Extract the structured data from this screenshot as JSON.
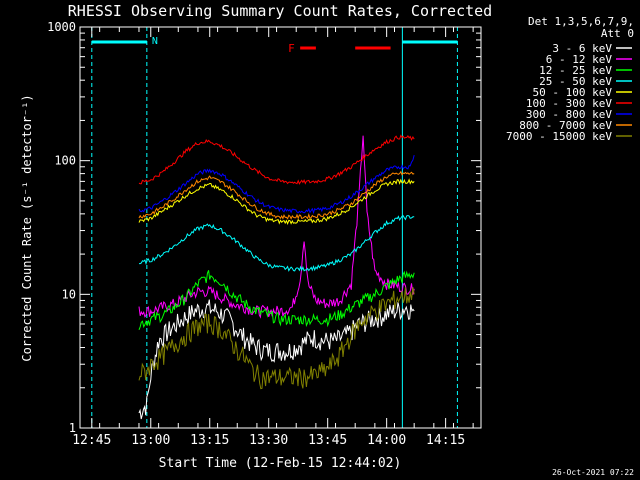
{
  "chart_data": {
    "type": "line",
    "title": "RHESSI Observing Summary Count Rates, Corrected",
    "xlabel": "Start Time (12-Feb-15 12:44:02)",
    "ylabel": "Corrected Count Rate (s⁻¹ detector⁻¹)",
    "y_scale": "log",
    "ylim": [
      1,
      1000
    ],
    "x_range_minutes": [
      "12:42",
      "14:24"
    ],
    "x_ticks": [
      "12:45",
      "13:00",
      "13:15",
      "13:30",
      "13:45",
      "14:00",
      "14:15"
    ],
    "y_ticks": [
      "1",
      "10",
      "100",
      "1000"
    ],
    "legend_header": [
      "Det 1,3,5,6,7,9,",
      "Att 0"
    ],
    "legend_position": "right",
    "timestamp": "26-Oct-2021 07:22",
    "annotations": {
      "night_marker": "N",
      "flare_marker": "F",
      "cyan_bars": [
        [
          "12:45",
          "12:59"
        ],
        [
          "14:04",
          "14:18"
        ]
      ],
      "cyan_dashed_lines": [
        "12:45",
        "12:59",
        "14:18"
      ],
      "cyan_solid_line": "14:04",
      "flare_bars": [
        [
          "13:38",
          "13:42"
        ],
        [
          "13:52",
          "14:01"
        ]
      ]
    },
    "series": [
      {
        "name": "3 - 6 keV",
        "color": "#ffffff",
        "times": [
          "12:57",
          "12:59",
          "13:00",
          "13:02",
          "13:05",
          "13:08",
          "13:11",
          "13:14",
          "13:17",
          "13:20",
          "13:23",
          "13:26",
          "13:29",
          "13:32",
          "13:35",
          "13:38",
          "13:41",
          "13:44",
          "13:47",
          "13:50",
          "13:53",
          "13:56",
          "13:59",
          "14:02",
          "14:05",
          "14:07"
        ],
        "values": [
          1.3,
          1.5,
          2.5,
          4.5,
          5.5,
          6.5,
          7.5,
          8,
          7.5,
          6.5,
          5,
          4.2,
          3.8,
          3.8,
          3.8,
          4.2,
          4.8,
          4.5,
          4.5,
          5,
          6,
          6.5,
          7,
          7.5,
          8,
          7.5
        ]
      },
      {
        "name": "6 - 12 keV",
        "color": "#ff00ff",
        "times": [
          "12:57",
          "13:00",
          "13:03",
          "13:06",
          "13:09",
          "13:12",
          "13:15",
          "13:18",
          "13:21",
          "13:24",
          "13:27",
          "13:30",
          "13:33",
          "13:36",
          "13:38",
          "13:39",
          "13:40",
          "13:42",
          "13:45",
          "13:48",
          "13:51",
          "13:53",
          "13:54",
          "13:55",
          "13:57",
          "14:00",
          "14:03",
          "14:06",
          "14:07"
        ],
        "values": [
          7.5,
          7.5,
          8,
          8.5,
          9.5,
          10.5,
          10.5,
          9.5,
          8.5,
          8,
          7.5,
          7.5,
          7.5,
          8,
          13,
          27,
          12,
          9,
          8.5,
          9,
          12,
          55,
          160,
          40,
          15,
          12,
          11.5,
          11,
          11
        ]
      },
      {
        "name": "12 - 25 keV",
        "color": "#00ff00",
        "times": [
          "12:57",
          "13:00",
          "13:03",
          "13:06",
          "13:09",
          "13:12",
          "13:15",
          "13:18",
          "13:21",
          "13:24",
          "13:27",
          "13:30",
          "13:33",
          "13:36",
          "13:39",
          "13:42",
          "13:45",
          "13:48",
          "13:51",
          "13:54",
          "13:57",
          "14:00",
          "14:03",
          "14:06",
          "14:07"
        ],
        "values": [
          6,
          6.5,
          7,
          8,
          9.5,
          12,
          14,
          12.5,
          10,
          8.5,
          7.5,
          7,
          6.5,
          6.5,
          6.5,
          6.5,
          6.5,
          7,
          8,
          9,
          10,
          11.5,
          13,
          14,
          14.5
        ]
      },
      {
        "name": "25 - 50 keV",
        "color": "#00ffff",
        "times": [
          "12:57",
          "13:00",
          "13:03",
          "13:06",
          "13:09",
          "13:12",
          "13:15",
          "13:18",
          "13:21",
          "13:24",
          "13:27",
          "13:30",
          "13:33",
          "13:36",
          "13:39",
          "13:42",
          "13:45",
          "13:48",
          "13:51",
          "13:54",
          "13:57",
          "14:00",
          "14:03",
          "14:06",
          "14:07"
        ],
        "values": [
          17,
          18,
          20,
          23,
          27,
          31,
          33,
          30,
          26,
          22,
          18.5,
          16.5,
          15.8,
          15.5,
          15.5,
          15.8,
          16.5,
          18,
          20,
          24,
          29,
          34,
          37,
          38,
          38
        ]
      },
      {
        "name": "50 - 100 keV",
        "color": "#ffff00",
        "times": [
          "12:57",
          "13:00",
          "13:03",
          "13:06",
          "13:09",
          "13:12",
          "13:15",
          "13:18",
          "13:21",
          "13:24",
          "13:27",
          "13:30",
          "13:33",
          "13:36",
          "13:39",
          "13:42",
          "13:45",
          "13:48",
          "13:51",
          "13:54",
          "13:57",
          "14:00",
          "14:03",
          "14:06",
          "14:07"
        ],
        "values": [
          35,
          37,
          42,
          48,
          55,
          62,
          66,
          60,
          53,
          45,
          39,
          36,
          35,
          35,
          35,
          35.5,
          37,
          40,
          45,
          52,
          60,
          67,
          70,
          70,
          70
        ]
      },
      {
        "name": "100 - 300 keV",
        "color": "#ff0000",
        "times": [
          "12:57",
          "13:00",
          "13:03",
          "13:06",
          "13:09",
          "13:12",
          "13:15",
          "13:18",
          "13:21",
          "13:24",
          "13:27",
          "13:30",
          "13:33",
          "13:36",
          "13:39",
          "13:42",
          "13:45",
          "13:48",
          "13:51",
          "13:54",
          "13:57",
          "14:00",
          "14:03",
          "14:06",
          "14:07"
        ],
        "values": [
          68,
          72,
          82,
          98,
          118,
          136,
          140,
          128,
          112,
          96,
          83,
          74,
          70,
          69,
          69,
          70,
          73,
          80,
          90,
          105,
          122,
          138,
          150,
          148,
          145
        ]
      },
      {
        "name": "300 - 800 keV",
        "color": "#0000ff",
        "times": [
          "12:57",
          "13:00",
          "13:03",
          "13:06",
          "13:09",
          "13:12",
          "13:15",
          "13:18",
          "13:21",
          "13:24",
          "13:27",
          "13:30",
          "13:33",
          "13:36",
          "13:39",
          "13:42",
          "13:45",
          "13:48",
          "13:51",
          "13:54",
          "13:57",
          "14:00",
          "14:03",
          "14:06",
          "14:07"
        ],
        "values": [
          42,
          44,
          50,
          58,
          68,
          80,
          85,
          79,
          68,
          58,
          50,
          45,
          43,
          42,
          42,
          42.5,
          44,
          48,
          54,
          63,
          74,
          85,
          90,
          90,
          110
        ]
      },
      {
        "name": "800 - 7000 keV",
        "color": "#ff8800",
        "times": [
          "12:57",
          "13:00",
          "13:03",
          "13:06",
          "13:09",
          "13:12",
          "13:15",
          "13:18",
          "13:21",
          "13:24",
          "13:27",
          "13:30",
          "13:33",
          "13:36",
          "13:39",
          "13:42",
          "13:45",
          "13:48",
          "13:51",
          "13:54",
          "13:57",
          "14:00",
          "14:03",
          "14:06",
          "14:07"
        ],
        "values": [
          38,
          40,
          45,
          52,
          61,
          70,
          75,
          69,
          60,
          51,
          44,
          40,
          38,
          38,
          38,
          38.5,
          40,
          43,
          48,
          56,
          66,
          76,
          80,
          80,
          80
        ]
      },
      {
        "name": "7000 - 15000 keV",
        "color": "#808000",
        "times": [
          "12:57",
          "12:59",
          "13:00",
          "13:03",
          "13:06",
          "13:09",
          "13:12",
          "13:15",
          "13:18",
          "13:21",
          "13:24",
          "13:26",
          "13:28",
          "13:31",
          "13:35",
          "13:39",
          "13:42",
          "13:45",
          "13:48",
          "13:51",
          "13:54",
          "13:57",
          "14:00",
          "14:03",
          "14:06",
          "14:07"
        ],
        "values": [
          2.5,
          2.7,
          3,
          3.5,
          4.2,
          5,
          5.8,
          6.2,
          5.5,
          4.2,
          3.3,
          2.7,
          2.4,
          2.4,
          2.4,
          2.4,
          2.5,
          2.8,
          3.5,
          5,
          6.5,
          7.5,
          8.5,
          9.5,
          10,
          10
        ]
      }
    ]
  }
}
